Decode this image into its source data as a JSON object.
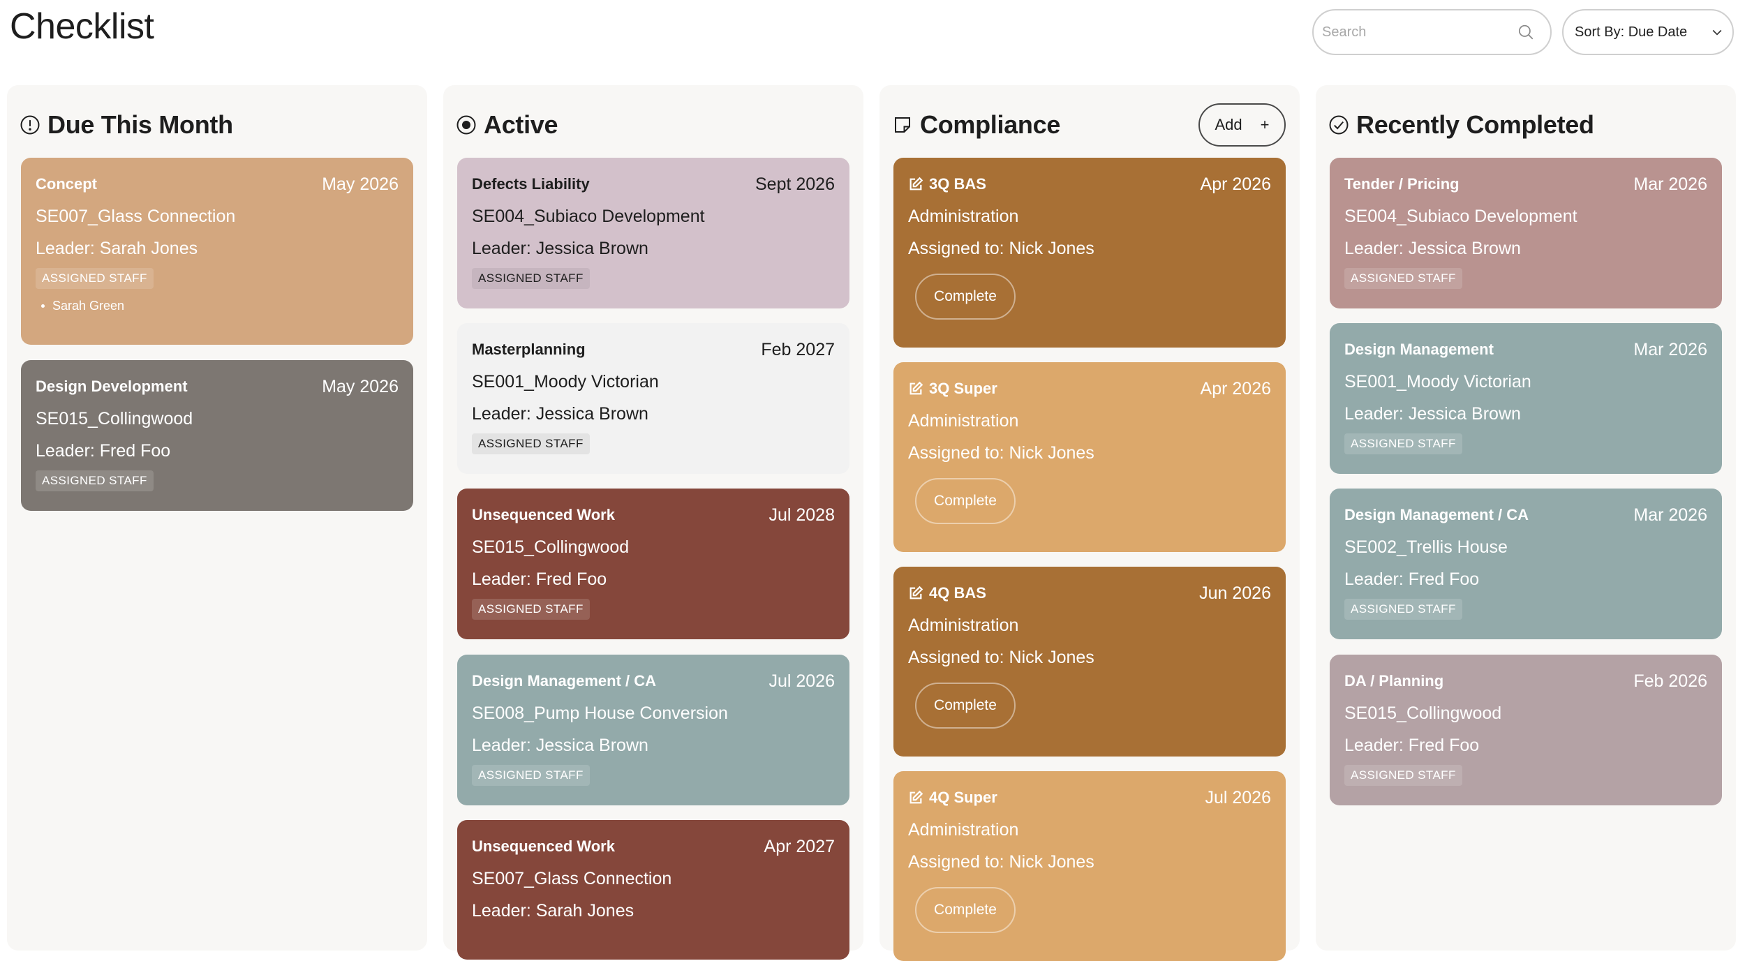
{
  "page": {
    "title": "Checklist"
  },
  "search": {
    "placeholder": "Search"
  },
  "sort": {
    "label": "Sort By: Due Date"
  },
  "columns": {
    "due": {
      "title": "Due This Month",
      "cards": [
        {
          "category": "Concept",
          "date": "May 2026",
          "project": "SE007_Glass Connection",
          "leader": "Leader: Sarah Jones",
          "badge": "ASSIGNED STAFF",
          "staff": [
            "Sarah Green"
          ],
          "color": "#d3a77f"
        },
        {
          "category": "Design Development",
          "date": "May 2026",
          "project": "SE015_Collingwood",
          "leader": "Leader: Fred Foo",
          "badge": "ASSIGNED STAFF",
          "color": "#7d7772"
        }
      ]
    },
    "active": {
      "title": "Active",
      "cards": [
        {
          "category": "Defects Liability",
          "date": "Sept 2026",
          "project": "SE004_Subiaco Development",
          "leader": "Leader: Jessica Brown",
          "badge": "ASSIGNED STAFF",
          "color": "#d3c1cb"
        },
        {
          "category": "Masterplanning",
          "date": "Feb 2027",
          "project": "SE001_Moody Victorian",
          "leader": "Leader: Jessica Brown",
          "badge": "ASSIGNED STAFF",
          "color": "#f2f2f2"
        },
        {
          "category": "Unsequenced Work",
          "date": "Jul 2028",
          "project": "SE015_Collingwood",
          "leader": "Leader: Fred Foo",
          "badge": "ASSIGNED STAFF",
          "color": "#85473b"
        },
        {
          "category": "Design Management / CA",
          "date": "Jul 2026",
          "project": "SE008_Pump House Conversion",
          "leader": "Leader: Jessica Brown",
          "badge": "ASSIGNED STAFF",
          "color": "#93aaaa"
        },
        {
          "category": "Unsequenced Work",
          "date": "Apr 2027",
          "project": "SE007_Glass Connection",
          "leader": "Leader: Sarah Jones",
          "color": "#85473b"
        }
      ]
    },
    "compliance": {
      "title": "Compliance",
      "add_label": "Add",
      "add_symbol": "+",
      "cards": [
        {
          "category": "3Q BAS",
          "date": "Apr 2026",
          "project": "Administration",
          "assigned": "Assigned to: Nick Jones",
          "button": "Complete",
          "color": "#a87035"
        },
        {
          "category": "3Q Super",
          "date": "Apr 2026",
          "project": "Administration",
          "assigned": "Assigned to: Nick Jones",
          "button": "Complete",
          "color": "#dca86b"
        },
        {
          "category": "4Q BAS",
          "date": "Jun 2026",
          "project": "Administration",
          "assigned": "Assigned to: Nick Jones",
          "button": "Complete",
          "color": "#a87035"
        },
        {
          "category": "4Q Super",
          "date": "Jul 2026",
          "project": "Administration",
          "assigned": "Assigned to: Nick Jones",
          "button": "Complete",
          "color": "#dca86b"
        }
      ]
    },
    "completed": {
      "title": "Recently Completed",
      "cards": [
        {
          "category": "Tender / Pricing",
          "date": "Mar 2026",
          "project": "SE004_Subiaco Development",
          "leader": "Leader: Jessica Brown",
          "badge": "ASSIGNED STAFF",
          "color": "#b99390"
        },
        {
          "category": "Design Management",
          "date": "Mar 2026",
          "project": "SE001_Moody Victorian",
          "leader": "Leader: Jessica Brown",
          "badge": "ASSIGNED STAFF",
          "color": "#93aaaa"
        },
        {
          "category": "Design Management / CA",
          "date": "Mar 2026",
          "project": "SE002_Trellis House",
          "leader": "Leader: Fred Foo",
          "badge": "ASSIGNED STAFF",
          "color": "#93aaaa"
        },
        {
          "category": "DA / Planning",
          "date": "Feb 2026",
          "project": "SE015_Collingwood",
          "leader": "Leader: Fred Foo",
          "badge": "ASSIGNED STAFF",
          "color": "#b4a2a5"
        }
      ]
    }
  }
}
